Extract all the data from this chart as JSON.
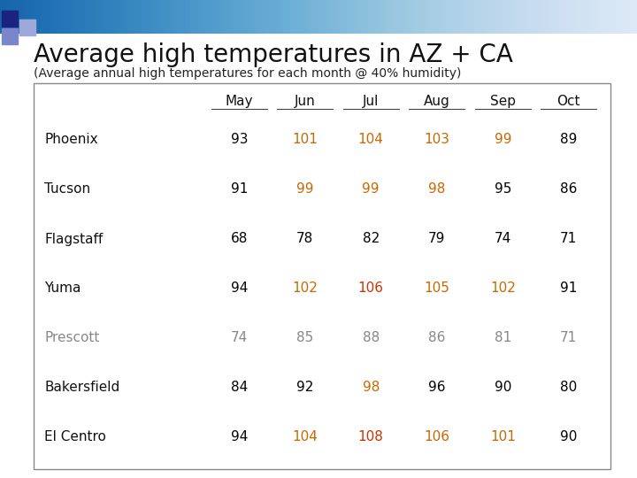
{
  "title": "Average high temperatures in AZ + CA",
  "subtitle": "(Average annual high temperatures for each month @ 40% humidity)",
  "columns": [
    "May",
    "Jun",
    "Jul",
    "Aug",
    "Sep",
    "Oct"
  ],
  "rows": [
    {
      "city": "Phoenix",
      "values": [
        93,
        101,
        104,
        103,
        99,
        89
      ],
      "colors": [
        "#000000",
        "#cc6600",
        "#cc6600",
        "#cc6600",
        "#cc6600",
        "#000000"
      ],
      "city_style": "normal"
    },
    {
      "city": "Tucson",
      "values": [
        91,
        99,
        99,
        98,
        95,
        86
      ],
      "colors": [
        "#000000",
        "#cc6600",
        "#cc6600",
        "#cc6600",
        "#000000",
        "#000000"
      ],
      "city_style": "normal"
    },
    {
      "city": "Flagstaff",
      "values": [
        68,
        78,
        82,
        79,
        74,
        71
      ],
      "colors": [
        "#000000",
        "#000000",
        "#000000",
        "#000000",
        "#000000",
        "#000000"
      ],
      "city_style": "normal"
    },
    {
      "city": "Yuma",
      "values": [
        94,
        102,
        106,
        105,
        102,
        91
      ],
      "colors": [
        "#000000",
        "#cc6600",
        "#cc3300",
        "#cc6600",
        "#cc6600",
        "#000000"
      ],
      "city_style": "normal"
    },
    {
      "city": "Prescott",
      "values": [
        74,
        85,
        88,
        86,
        81,
        71
      ],
      "colors": [
        "#888888",
        "#888888",
        "#888888",
        "#888888",
        "#888888",
        "#888888"
      ],
      "city_style": "light"
    },
    {
      "city": "Bakersfield",
      "values": [
        84,
        92,
        98,
        96,
        90,
        80
      ],
      "colors": [
        "#000000",
        "#000000",
        "#cc6600",
        "#000000",
        "#000000",
        "#000000"
      ],
      "city_style": "normal"
    },
    {
      "city": "El Centro",
      "values": [
        94,
        104,
        108,
        106,
        101,
        90
      ],
      "colors": [
        "#000000",
        "#cc6600",
        "#cc3300",
        "#cc6600",
        "#cc6600",
        "#000000"
      ],
      "city_style": "normal"
    }
  ],
  "bg_color": "#ffffff",
  "slide_bg": "#ffffff",
  "header_bar_color_left": "#1a237e",
  "header_bar_color_right": "#e8eaf6",
  "title_color": "#111111",
  "subtitle_color": "#222222",
  "table_border_color": "#888888",
  "header_underline_color": "#444444",
  "font_size_title": 20,
  "font_size_subtitle": 10,
  "font_size_table": 11
}
